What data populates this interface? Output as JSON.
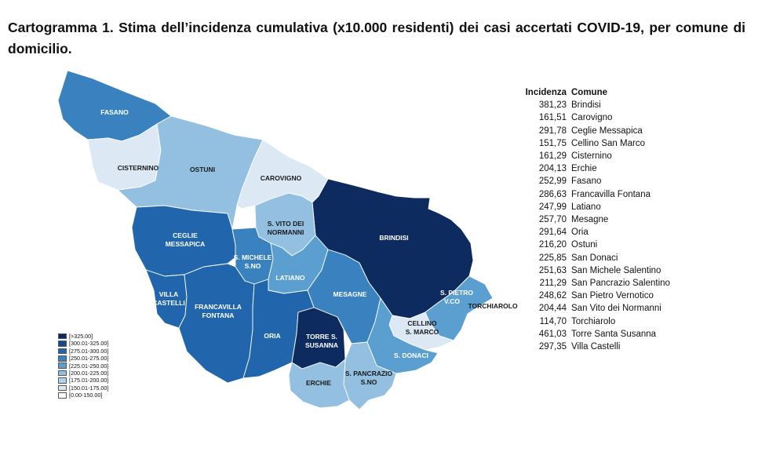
{
  "title": "Cartogramma 1. Stima dell’incidenza cumulativa (x10.000 residenti) dei casi accertati COVID-19, per comune di domicilio.",
  "table": {
    "headers": [
      "Incidenza",
      "Comune"
    ],
    "rows": [
      [
        "381,23",
        "Brindisi"
      ],
      [
        "161,51",
        "Carovigno"
      ],
      [
        "291,78",
        "Ceglie Messapica"
      ],
      [
        "151,75",
        "Cellino San Marco"
      ],
      [
        "161,29",
        "Cisternino"
      ],
      [
        "204,13",
        "Erchie"
      ],
      [
        "252,99",
        "Fasano"
      ],
      [
        "286,63",
        "Francavilla Fontana"
      ],
      [
        "247,99",
        "Latiano"
      ],
      [
        "257,70",
        "Mesagne"
      ],
      [
        "291,64",
        "Oria"
      ],
      [
        "216,20",
        "Ostuni"
      ],
      [
        "225,85",
        "San Donaci"
      ],
      [
        "251,63",
        "San Michele Salentino"
      ],
      [
        "211,29",
        "San Pancrazio Salentino"
      ],
      [
        "248,62",
        "San Pietro Vernotico"
      ],
      [
        "204,44",
        "San Vito dei Normanni"
      ],
      [
        "114,70",
        "Torchiarolo"
      ],
      [
        "461,03",
        "Torre Santa Susanna"
      ],
      [
        "297,35",
        "Villa Castelli"
      ]
    ]
  },
  "legend": [
    {
      "label": "[>325.00]",
      "color": "#0d2b5e"
    },
    {
      "label": "[300.01-325.00]",
      "color": "#174a8a"
    },
    {
      "label": "[275.01-300.00]",
      "color": "#2166ac"
    },
    {
      "label": "[250.01-275.00]",
      "color": "#3a82bf"
    },
    {
      "label": "[225.01-250.00]",
      "color": "#5b9fd0"
    },
    {
      "label": "[200.01-225.00]",
      "color": "#93bfe0"
    },
    {
      "label": "[175.01-200.00]",
      "color": "#b3d2ea"
    },
    {
      "label": "[150.01-175.00]",
      "color": "#dce9f5"
    },
    {
      "label": "[0.00-150.00]",
      "color": "#ffffff"
    }
  ],
  "map": {
    "regions": [
      {
        "name": "FASANO",
        "color": "#3a82bf"
      },
      {
        "name": "CISTERNINO",
        "color": "#dce9f5"
      },
      {
        "name": "OSTUNI",
        "color": "#93bfe0"
      },
      {
        "name": "CAROVIGNO",
        "color": "#dce9f5"
      },
      {
        "name": "BRINDISI",
        "color": "#0d2b5e"
      },
      {
        "name": "S. VITO DEI NORMANNI",
        "color": "#93bfe0"
      },
      {
        "name": "CEGLIE MESSAPICA",
        "color": "#2166ac"
      },
      {
        "name": "S. MICHELE S.NO",
        "color": "#3a82bf"
      },
      {
        "name": "LATIANO",
        "color": "#5b9fd0"
      },
      {
        "name": "MESAGNE",
        "color": "#3a82bf"
      },
      {
        "name": "VILLA CASTELLI",
        "color": "#2166ac"
      },
      {
        "name": "FRANCAVILLA FONTANA",
        "color": "#2166ac"
      },
      {
        "name": "ORIA",
        "color": "#2166ac"
      },
      {
        "name": "TORRE S. SUSANNA",
        "color": "#0d2b5e"
      },
      {
        "name": "S. PIETRO V.CO",
        "color": "#5b9fd0"
      },
      {
        "name": "CELLINO S. MARCO",
        "color": "#dce9f5"
      },
      {
        "name": "TORCHIAROLO",
        "color": "#ffffff"
      },
      {
        "name": "S. DONACI",
        "color": "#5b9fd0"
      },
      {
        "name": "S. PANCRAZIO S.NO",
        "color": "#93bfe0"
      },
      {
        "name": "ERCHIE",
        "color": "#93bfe0"
      }
    ]
  }
}
